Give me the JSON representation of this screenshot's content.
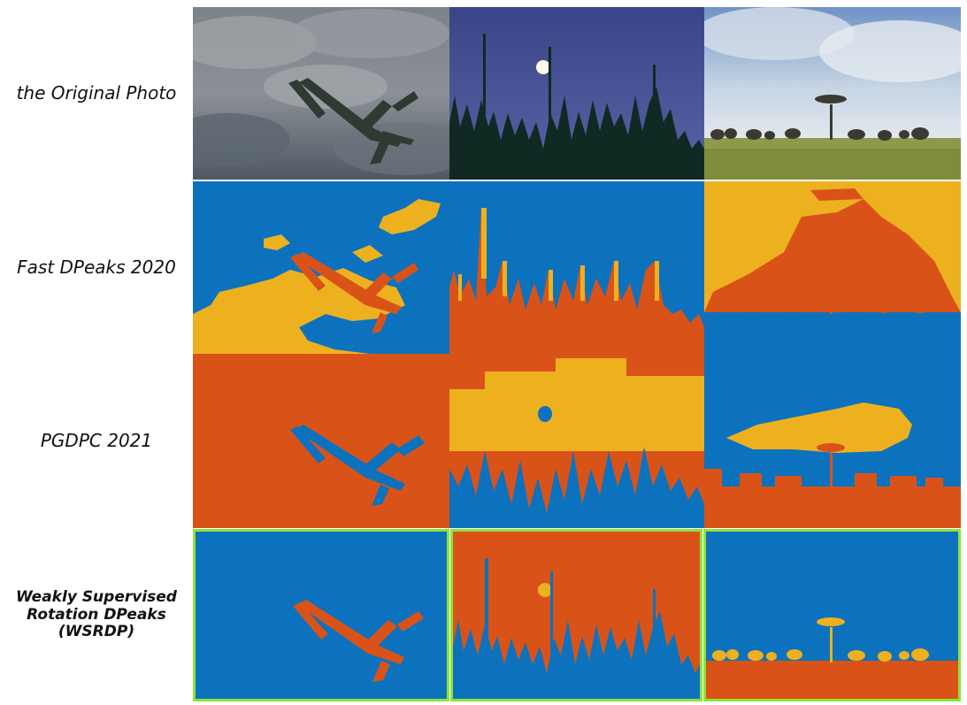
{
  "figure": {
    "rows": [
      {
        "label_lines": [
          "the Original Photo"
        ],
        "emphasis": false
      },
      {
        "label_lines": [
          "Fast DPeaks 2020"
        ],
        "emphasis": false
      },
      {
        "label_lines": [
          "PGDPC 2021"
        ],
        "emphasis": false
      },
      {
        "label_lines": [
          "Weakly Supervised",
          "Rotation DPeaks",
          "(WSRDP)"
        ],
        "emphasis": true,
        "highlight_color": "#8ee33a"
      }
    ],
    "columns": [
      "airplane",
      "night-forest",
      "savanna-elephants"
    ]
  },
  "colors": {
    "cluster_blue": "#0d72bd",
    "cluster_orange": "#d95319",
    "cluster_yellow": "#edb120",
    "highlight_border": "#8ee33a"
  }
}
